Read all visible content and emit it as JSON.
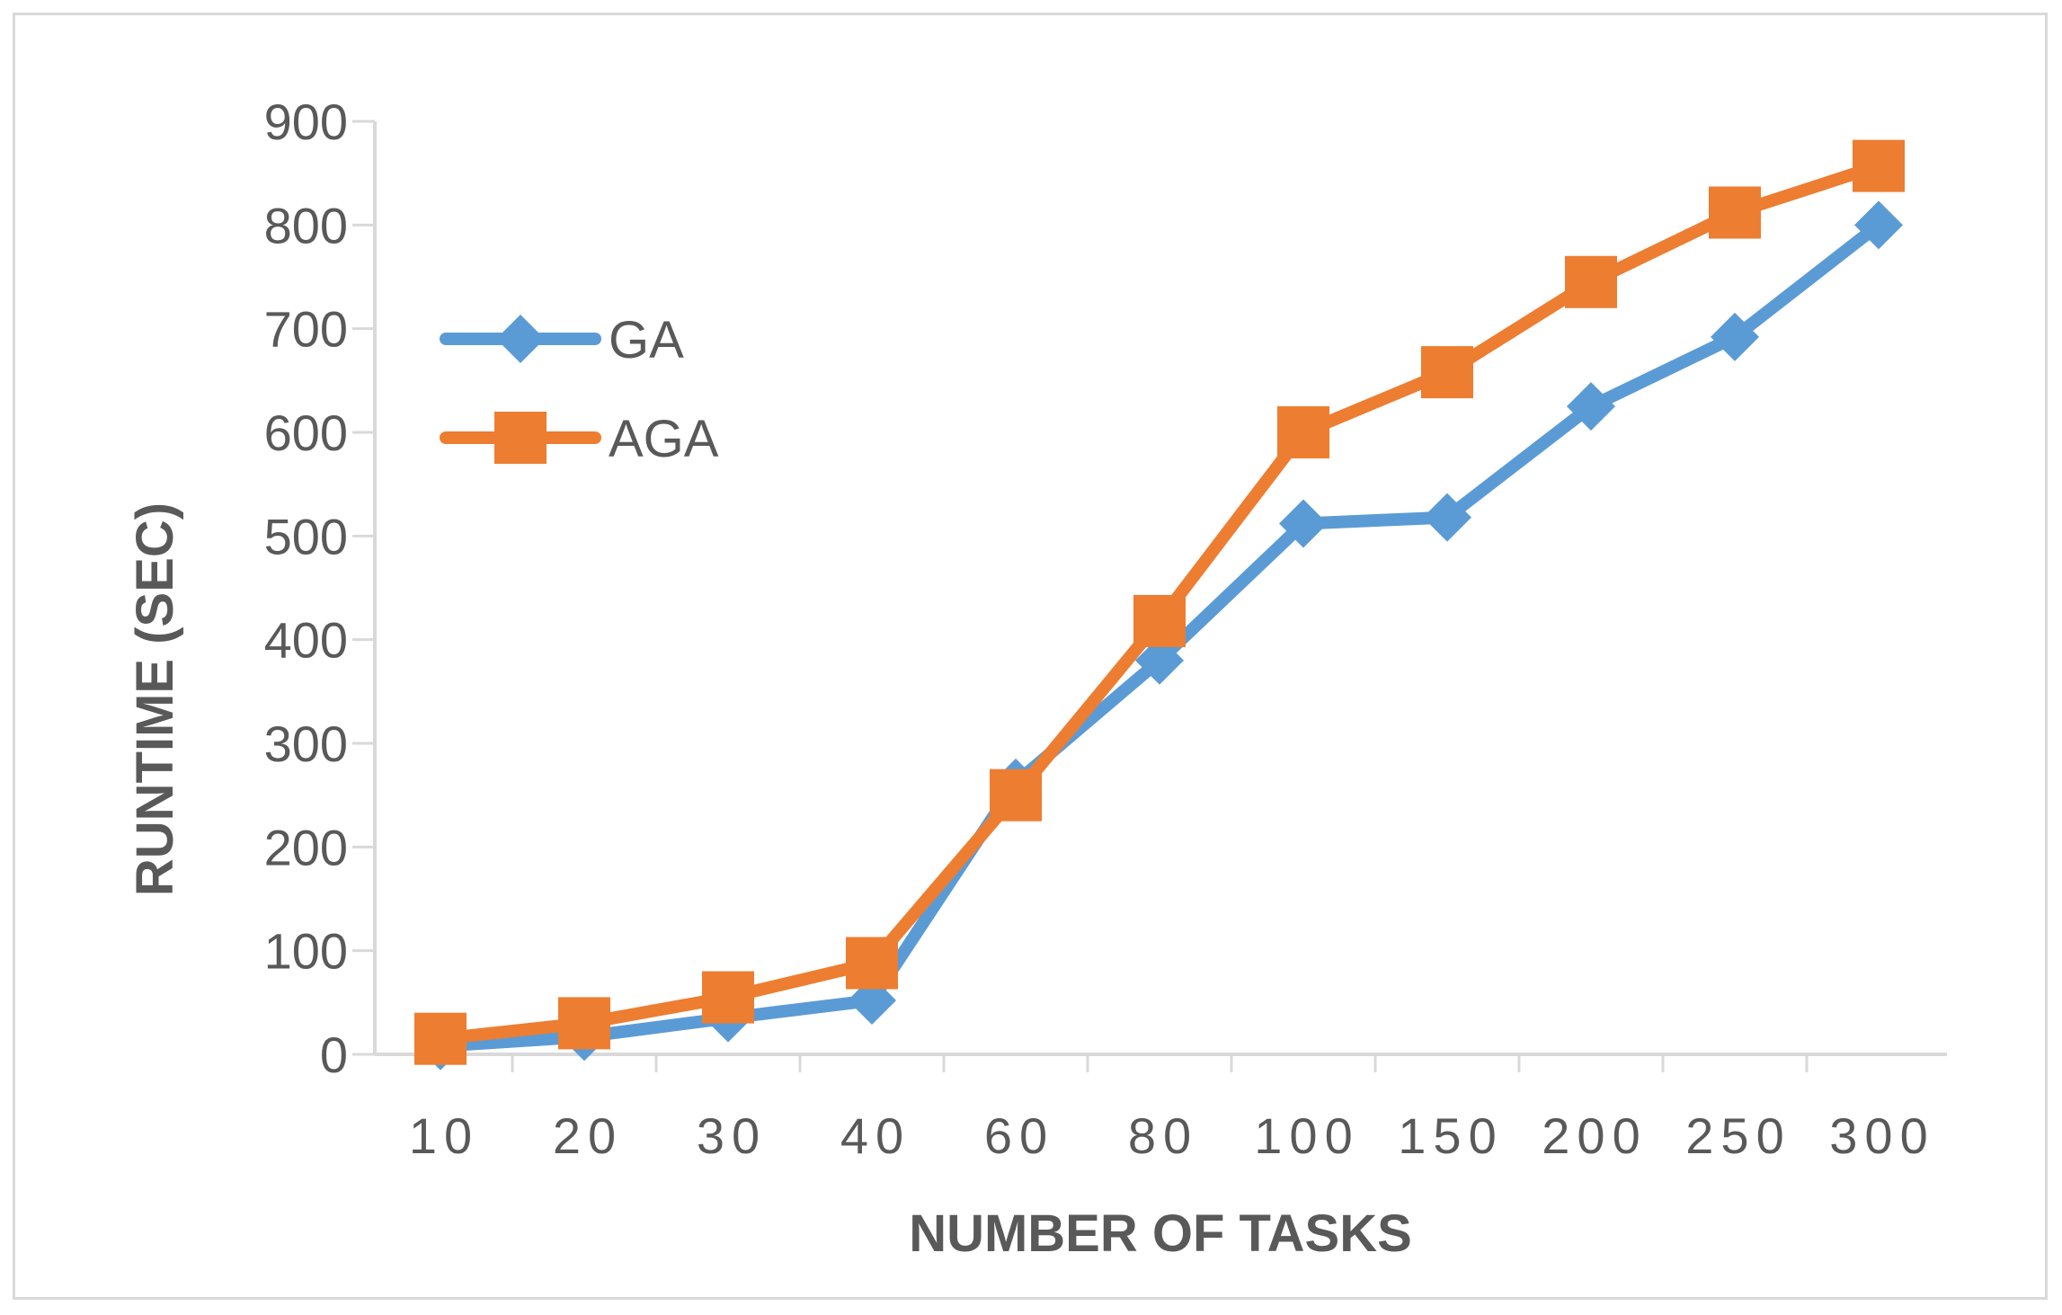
{
  "chart_data": {
    "type": "line",
    "title": "",
    "xlabel": "NUMBER OF TASKS",
    "ylabel": "RUNTIME (SEC)",
    "categories": [
      "10",
      "20",
      "30",
      "40",
      "60",
      "80",
      "100",
      "150",
      "200",
      "250",
      "300"
    ],
    "ylim": [
      0,
      900
    ],
    "yticks": [
      0,
      100,
      200,
      300,
      400,
      500,
      600,
      700,
      800,
      900
    ],
    "grid": false,
    "legend_position": "top-left",
    "series": [
      {
        "name": "GA",
        "color": "#5b9bd5",
        "marker": "diamond",
        "values": [
          8,
          17,
          35,
          52,
          262,
          380,
          512,
          518,
          625,
          692,
          800
        ]
      },
      {
        "name": "AGA",
        "color": "#ed7d31",
        "marker": "square",
        "values": [
          15,
          30,
          55,
          88,
          250,
          418,
          600,
          658,
          745,
          812,
          857
        ]
      }
    ]
  }
}
